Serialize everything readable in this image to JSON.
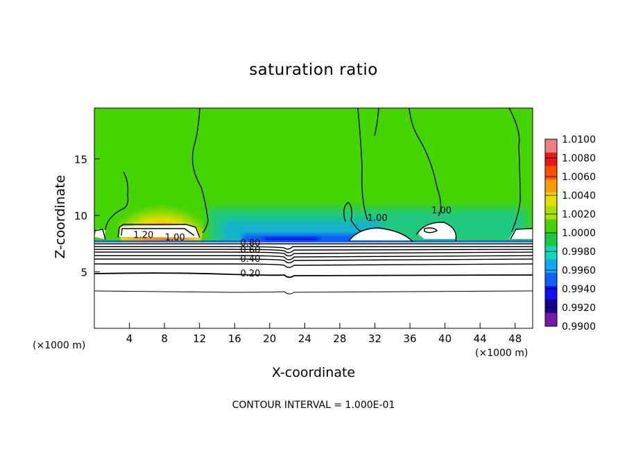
{
  "chart_data": {
    "type": "heatmap",
    "title": "saturation ratio",
    "xlabel": "X-coordinate",
    "ylabel": "Z-coordinate",
    "x_unit_left": "(×1000 m)",
    "x_unit_right": "(×1000 m)",
    "footer": "CONTOUR INTERVAL = 1.000E-01",
    "xlim": [
      0,
      50
    ],
    "ylim": [
      0,
      19.5
    ],
    "x_ticks": [
      4,
      8,
      12,
      16,
      20,
      24,
      28,
      32,
      36,
      40,
      44,
      48
    ],
    "y_ticks": [
      5,
      10,
      15
    ],
    "colorbar": {
      "range": [
        0.99,
        1.01
      ],
      "levels": [
        "1.0100",
        "1.0080",
        "1.0060",
        "1.0040",
        "1.0020",
        "1.0000",
        "0.9980",
        "0.9960",
        "0.9940",
        "0.9920",
        "0.9900"
      ],
      "colors": [
        "#f08080",
        "#e81818",
        "#ff5000",
        "#ff9a00",
        "#e6dc00",
        "#a8e000",
        "#44d400",
        "#18c840",
        "#10d8b8",
        "#10a8f0",
        "#1060ff",
        "#1010f0",
        "#1a0090",
        "#7818a8"
      ]
    },
    "contour_labels": [
      {
        "text": "1.20",
        "x": 5.6,
        "y": 8.3
      },
      {
        "text": "1.00",
        "x": 9.2,
        "y": 8.1
      },
      {
        "text": "0.80",
        "x": 17.8,
        "y": 7.6
      },
      {
        "text": "0.60",
        "x": 17.8,
        "y": 7.0
      },
      {
        "text": "0.40",
        "x": 17.8,
        "y": 6.2
      },
      {
        "text": "0.20",
        "x": 17.8,
        "y": 4.9
      },
      {
        "text": "1.00",
        "x": 32.3,
        "y": 9.8
      },
      {
        "text": "1.00",
        "x": 39.6,
        "y": 10.5
      }
    ],
    "contour_levels_below_cloud_base": [
      0.2,
      0.4,
      0.6,
      0.8,
      1.0
    ],
    "grid": false
  }
}
